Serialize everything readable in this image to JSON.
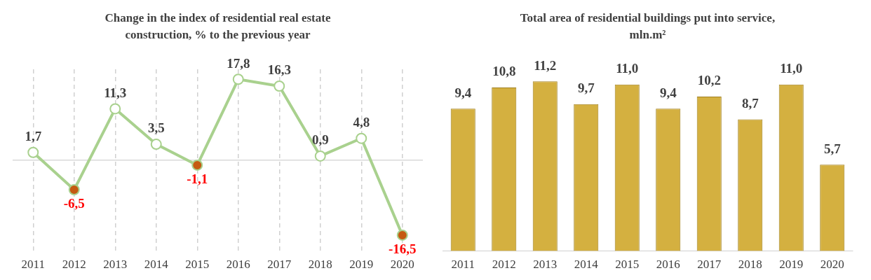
{
  "chart_data": [
    {
      "type": "line",
      "title": "Change in the index of residential real estate construction,  % to the previous year",
      "categories": [
        "2011",
        "2012",
        "2013",
        "2014",
        "2015",
        "2016",
        "2017",
        "2018",
        "2019",
        "2020"
      ],
      "series": [
        {
          "color": "#a9d18e",
          "values": [
            1.7,
            -6.5,
            11.3,
            3.5,
            -1.1,
            17.8,
            16.3,
            0.9,
            4.8,
            -16.5
          ],
          "colors": [
            "#ffffff",
            "#c55a11",
            "#ffffff",
            "#ffffff",
            "#c55a11",
            "#ffffff",
            "#ffffff",
            "#ffffff",
            "#ffffff",
            "#c55a11"
          ],
          "value_labels": [
            "1,7",
            "-6,5",
            "11,3",
            "3,5",
            "-1,1",
            "17,8",
            "16,3",
            "0,9",
            "4,8",
            "-16,5"
          ]
        }
      ],
      "grid": "x",
      "legend": false,
      "marker": "circle",
      "line_style": "solid",
      "ref_lines": [
        {
          "axis": "y",
          "value": 0,
          "color": "#d9d9d9"
        }
      ]
    },
    {
      "type": "bar",
      "title": "Total area of residential buildings put into service, mln.m²",
      "categories": [
        "2011",
        "2012",
        "2013",
        "2014",
        "2015",
        "2016",
        "2017",
        "2018",
        "2019",
        "2020"
      ],
      "series": [
        {
          "color": "#d4b040",
          "values": [
            9.4,
            10.8,
            11.2,
            9.7,
            11.0,
            9.4,
            10.2,
            8.7,
            11.0,
            5.7
          ],
          "value_labels": [
            "9,4",
            "10,8",
            "11,2",
            "9,7",
            "11,0",
            "9,4",
            "10,2",
            "8,7",
            "11,0",
            "5,7"
          ]
        }
      ],
      "grid": false,
      "legend": false
    }
  ]
}
